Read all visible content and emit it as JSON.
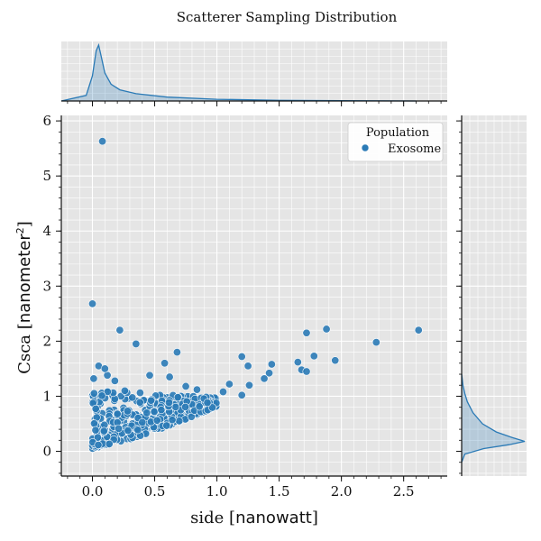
{
  "chart_data": {
    "type": "scatter",
    "title": "Scatterer Sampling Distribution",
    "xlabel": {
      "main": "side",
      "unit": "nanowatt"
    },
    "ylabel": {
      "main": "Csca",
      "unit": "nanometer",
      "unit_power": "2"
    },
    "xlim": [
      -0.25,
      2.85
    ],
    "ylim": [
      -0.45,
      6.1
    ],
    "xticks": [
      0.0,
      0.5,
      1.0,
      1.5,
      2.0,
      2.5
    ],
    "xtick_labels": [
      "0.0",
      "0.5",
      "1.0",
      "1.5",
      "2.0",
      "2.5"
    ],
    "yticks": [
      0,
      1,
      2,
      3,
      4,
      5,
      6
    ],
    "ytick_labels": [
      "0",
      "1",
      "2",
      "3",
      "4",
      "5",
      "6"
    ],
    "grid": true,
    "legend": {
      "title": "Population",
      "placement": "top-right"
    },
    "series": [
      {
        "name": "Exosome",
        "color": "#2a7ab6",
        "x": [
          0.08,
          0.0,
          0.22,
          0.35,
          1.88,
          2.28,
          2.62,
          1.72,
          0.68,
          1.78,
          1.95,
          1.65,
          1.44,
          1.2,
          1.25,
          0.58,
          1.68,
          1.72,
          0.46,
          0.62,
          0.75,
          0.84,
          1.1,
          1.42,
          1.38,
          1.26,
          1.05,
          1.2,
          0.05,
          0.12,
          0.18,
          0.26,
          0.01,
          0.1
        ],
        "y": [
          5.63,
          2.68,
          2.2,
          1.95,
          2.22,
          1.98,
          2.2,
          2.15,
          1.8,
          1.73,
          1.65,
          1.62,
          1.58,
          1.72,
          1.55,
          1.6,
          1.48,
          1.45,
          1.38,
          1.35,
          1.18,
          1.12,
          1.22,
          1.42,
          1.32,
          1.2,
          1.08,
          1.02,
          1.55,
          1.38,
          1.28,
          1.1,
          1.32,
          1.5
        ],
        "dense_cluster": {
          "x_range": [
            0.0,
            1.0
          ],
          "y_lower_envelope": [
            [
              0.0,
              0.05
            ],
            [
              0.3,
              0.22
            ],
            [
              0.6,
              0.45
            ],
            [
              0.9,
              0.72
            ],
            [
              1.0,
              0.82
            ]
          ],
          "y_upper": 1.15
        }
      }
    ],
    "marginals": {
      "x_kde": {
        "x": [
          -0.25,
          -0.05,
          0.0,
          0.03,
          0.05,
          0.07,
          0.1,
          0.15,
          0.22,
          0.35,
          0.6,
          1.0,
          1.5,
          2.0,
          2.6
        ],
        "density": [
          0.0,
          0.1,
          0.45,
          0.9,
          1.0,
          0.8,
          0.5,
          0.3,
          0.2,
          0.13,
          0.07,
          0.03,
          0.012,
          0.005,
          0.0
        ]
      },
      "y_kde": {
        "y": [
          -0.2,
          -0.05,
          0.05,
          0.12,
          0.18,
          0.25,
          0.35,
          0.5,
          0.7,
          0.9,
          1.05,
          1.2,
          1.4
        ],
        "density": [
          0.0,
          0.05,
          0.35,
          0.75,
          1.0,
          0.8,
          0.55,
          0.33,
          0.18,
          0.09,
          0.05,
          0.02,
          0.0
        ]
      }
    }
  }
}
